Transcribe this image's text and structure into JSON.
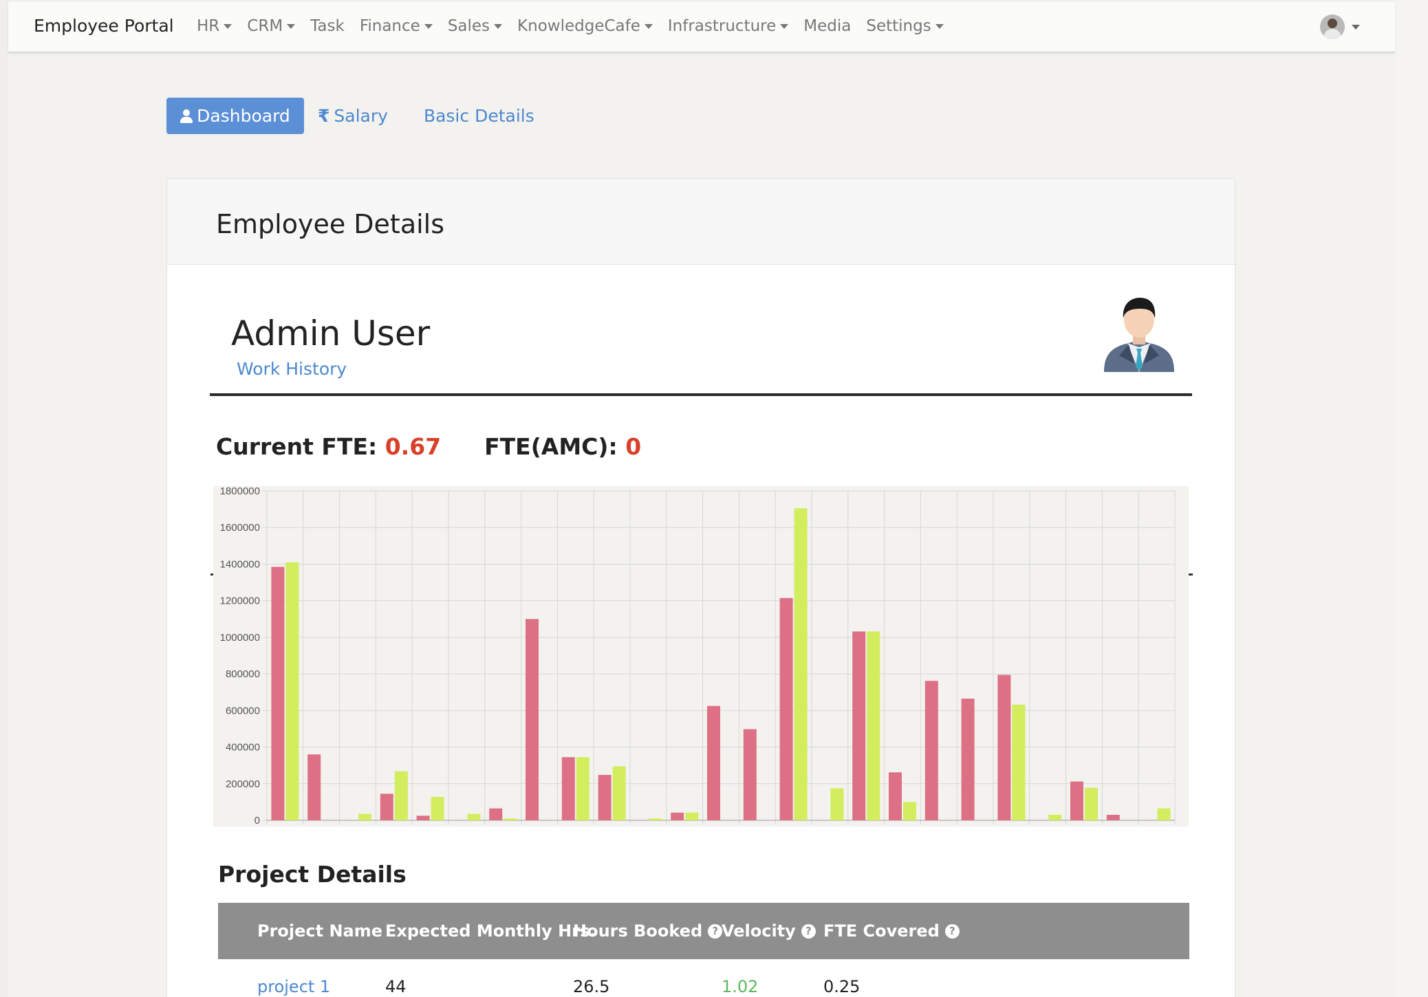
{
  "navbar": {
    "brand": "Employee Portal",
    "items": [
      {
        "label": "HR",
        "dropdown": true
      },
      {
        "label": "CRM",
        "dropdown": true
      },
      {
        "label": "Task",
        "dropdown": false
      },
      {
        "label": "Finance",
        "dropdown": true
      },
      {
        "label": "Sales",
        "dropdown": true
      },
      {
        "label": "KnowledgeCafe",
        "dropdown": true
      },
      {
        "label": "Infrastructure",
        "dropdown": true
      },
      {
        "label": "Media",
        "dropdown": false
      },
      {
        "label": "Settings",
        "dropdown": true
      }
    ],
    "user_menu_icon": "user-avatar-icon"
  },
  "tabs": {
    "dashboard": "Dashboard",
    "salary": "Salary",
    "basic_details": "Basic Details",
    "active": "Dashboard"
  },
  "card": {
    "title": "Employee Details",
    "user_name": "Admin User",
    "work_history_link": "Work History",
    "profile_icon": "male-employee-avatar-icon"
  },
  "fte": {
    "current_label": "Current FTE:",
    "current_value": "0.67",
    "amc_label": "FTE(AMC):",
    "amc_value": "0"
  },
  "chart_data": {
    "type": "bar",
    "ylim": [
      0,
      1800000
    ],
    "yticks": [
      0,
      200000,
      400000,
      600000,
      800000,
      1000000,
      1200000,
      1400000,
      1600000,
      1800000
    ],
    "grid": true,
    "categories_count": 25,
    "series": [
      {
        "color": "#de7086",
        "values": [
          1385000,
          360000,
          0,
          145000,
          25000,
          0,
          65000,
          1100000,
          345000,
          248000,
          0,
          42000,
          625000,
          498000,
          1215000,
          0,
          1032000,
          262000,
          762000,
          665000,
          795000,
          0,
          212000,
          30000,
          0
        ]
      },
      {
        "color": "#d2ed5e",
        "values": [
          1410000,
          0,
          35000,
          268000,
          128000,
          35000,
          10000,
          0,
          345000,
          295000,
          10000,
          42000,
          0,
          0,
          1705000,
          175000,
          1032000,
          100000,
          0,
          0,
          632000,
          30000,
          178000,
          0,
          65000
        ]
      }
    ]
  },
  "projects": {
    "section_title": "Project Details",
    "columns": [
      "Project Name",
      "Expected Monthly Hrs.",
      "Hours Booked",
      "Velocity",
      "FTE Covered"
    ],
    "help_icon": "question-circle-icon",
    "rows": [
      {
        "name": "project 1",
        "expected": "44",
        "booked": "26.5",
        "velocity": "1.02",
        "fte": "0.25"
      }
    ]
  },
  "colors": {
    "accent": "#5b8fd6",
    "link": "#4d88d0",
    "fte_value": "#d8402a",
    "velocity_good": "#5cb85c",
    "table_header": "#8e8e8e"
  }
}
